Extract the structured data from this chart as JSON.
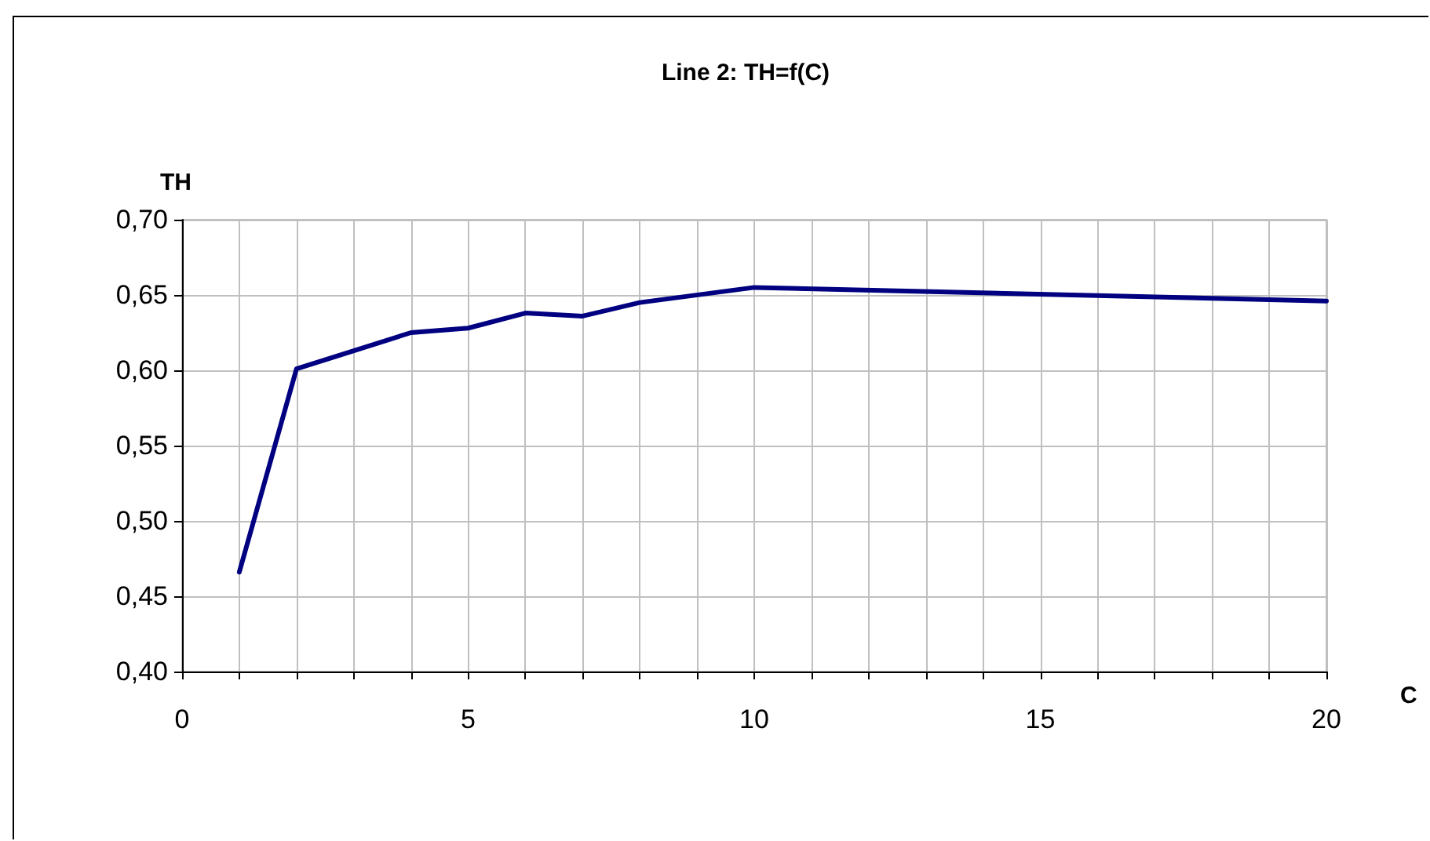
{
  "chart_data": {
    "type": "line",
    "title": "Line 2: TH=f(C)",
    "xlabel": "C",
    "ylabel": "TH",
    "x": [
      1,
      2,
      3,
      4,
      5,
      6,
      7,
      8,
      10,
      20
    ],
    "series": [
      {
        "color": "#000080",
        "values": [
          0.466,
          0.601,
          0.613,
          0.625,
          0.628,
          0.638,
          0.636,
          0.645,
          0.655,
          0.646
        ]
      }
    ],
    "xlim": [
      0,
      20
    ],
    "xticks": [
      0,
      {
        "value": 1,
        "label": null
      },
      {
        "value": 2,
        "label": null
      },
      {
        "value": 3,
        "label": null
      },
      {
        "value": 4,
        "label": null
      },
      5,
      {
        "value": 6,
        "label": null
      },
      {
        "value": 7,
        "label": null
      },
      {
        "value": 8,
        "label": null
      },
      {
        "value": 9,
        "label": null
      },
      10,
      {
        "value": 11,
        "label": null
      },
      {
        "value": 12,
        "label": null
      },
      {
        "value": 13,
        "label": null
      },
      {
        "value": 14,
        "label": null
      },
      15,
      {
        "value": 16,
        "label": null
      },
      {
        "value": 17,
        "label": null
      },
      {
        "value": 18,
        "label": null
      },
      {
        "value": 19,
        "label": null
      },
      20
    ],
    "ylim": [
      0.4,
      0.7
    ],
    "yticks": [
      {
        "value": 0.4,
        "label": "0,40"
      },
      {
        "value": 0.45,
        "label": "0,45"
      },
      {
        "value": 0.5,
        "label": "0,50"
      },
      {
        "value": 0.55,
        "label": "0,55"
      },
      {
        "value": 0.6,
        "label": "0,60"
      },
      {
        "value": 0.65,
        "label": "0,65"
      },
      {
        "value": 0.7,
        "label": "0,70"
      }
    ],
    "grid": true,
    "marker": "none",
    "line_style": "solid"
  }
}
